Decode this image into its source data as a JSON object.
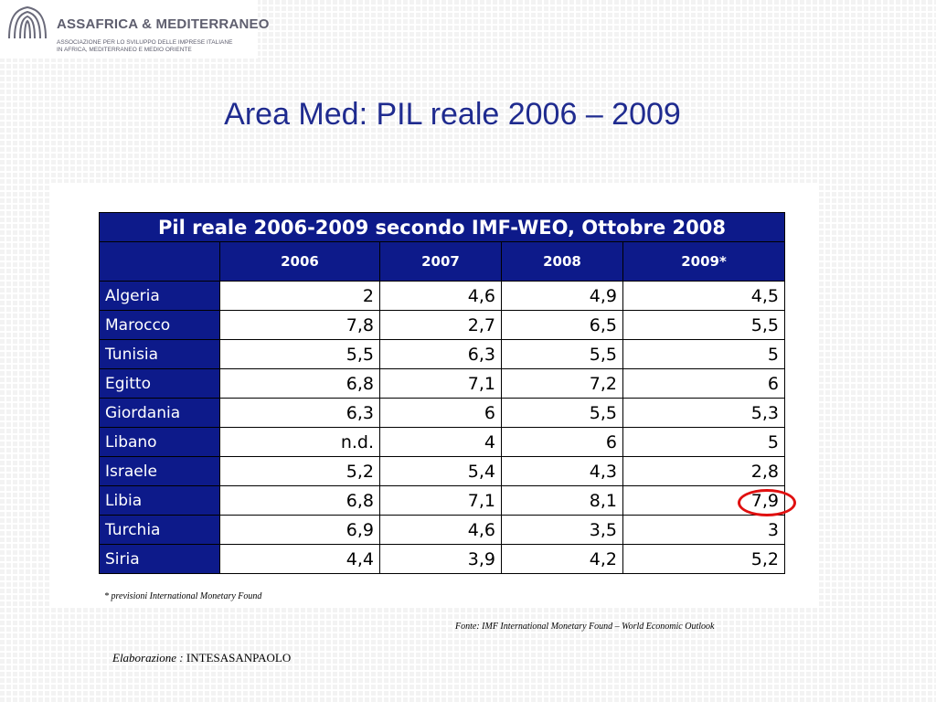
{
  "logo": {
    "name": "ASSAFRICA & MEDITERRANEO",
    "subtitle_line1": "ASSOCIAZIONE PER LO SVILUPPO DELLE IMPRESE ITALIANE",
    "subtitle_line2": "IN AFRICA, MEDITERRANEO E MEDIO ORIENTE"
  },
  "title": "Area Med: PIL reale 2006 – 2009",
  "table": {
    "caption": "Pil reale 2006-2009 secondo IMF-WEO, Ottobre 2008",
    "years": [
      "2006",
      "2007",
      "2008",
      "2009*"
    ],
    "rows": [
      {
        "country": "Algeria",
        "values": [
          "2",
          "4,6",
          "4,9",
          "4,5"
        ]
      },
      {
        "country": "Marocco",
        "values": [
          "7,8",
          "2,7",
          "6,5",
          "5,5"
        ]
      },
      {
        "country": "Tunisia",
        "values": [
          "5,5",
          "6,3",
          "5,5",
          "5"
        ]
      },
      {
        "country": "Egitto",
        "values": [
          "6,8",
          "7,1",
          "7,2",
          "6"
        ]
      },
      {
        "country": "Giordania",
        "values": [
          "6,3",
          "6",
          "5,5",
          "5,3"
        ]
      },
      {
        "country": "Libano",
        "values": [
          "n.d.",
          "4",
          "6",
          "5"
        ]
      },
      {
        "country": "Israele",
        "values": [
          "5,2",
          "5,4",
          "4,3",
          "2,8"
        ]
      },
      {
        "country": "Libia",
        "values": [
          "6,8",
          "7,1",
          "8,1",
          "7,9"
        ]
      },
      {
        "country": "Turchia",
        "values": [
          "6,9",
          "4,6",
          "3,5",
          "3"
        ]
      },
      {
        "country": "Siria",
        "values": [
          "4,4",
          "3,9",
          "4,2",
          "5,2"
        ]
      }
    ],
    "header_color": "#0d1a8a",
    "highlight_color": "#e01010"
  },
  "note": "* previsioni International Monetary Found",
  "source": "Fonte: IMF International Monetary Found – World Economic Outlook",
  "credit": {
    "label": "Elaborazione :",
    "org": "INTESASANPAOLO"
  }
}
